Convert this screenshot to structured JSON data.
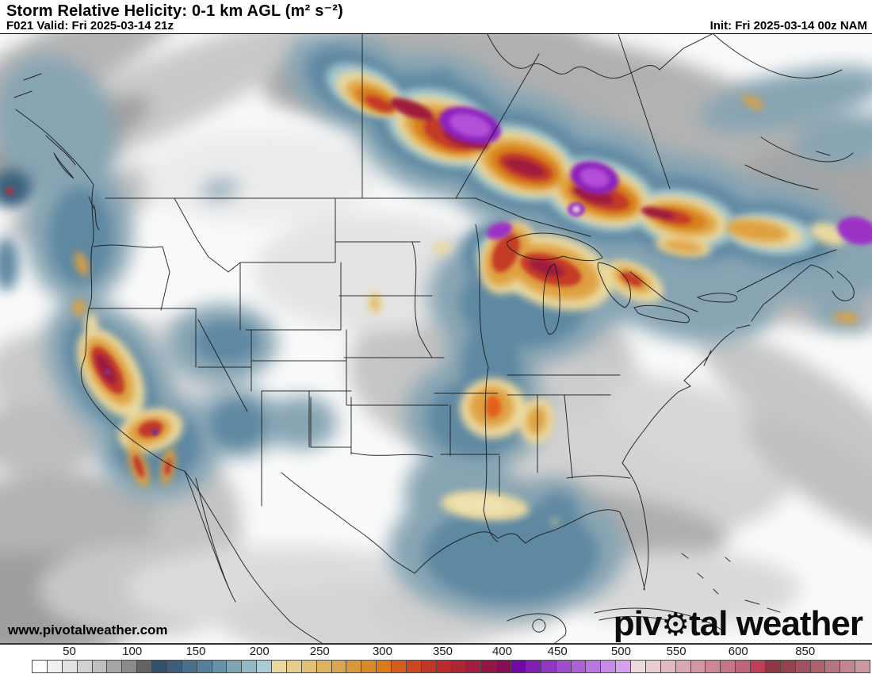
{
  "header": {
    "title": "Storm Relative Helicity: 0-1 km AGL (m² s⁻²)",
    "forecast_line": "F021 Valid: Fri 2025-03-14 21z",
    "init_line": "Init: Fri 2025-03-14 00z NAM"
  },
  "map": {
    "watermark": "www.pivotalweather.com",
    "logo": {
      "part1": "piv",
      "gear": "⚙",
      "part2": "tal weather"
    }
  },
  "colorbar": {
    "labels": [
      "50",
      "100",
      "150",
      "200",
      "250",
      "300",
      "350",
      "400",
      "450",
      "500",
      "550",
      "600",
      "850"
    ],
    "positions_pct": [
      4.5,
      12.0,
      19.6,
      27.2,
      34.4,
      41.9,
      49.1,
      56.2,
      62.8,
      70.4,
      77.0,
      84.4,
      92.4
    ],
    "cells": [
      "#ffffff",
      "#f0f0f0",
      "#e2e2e2",
      "#d2d2d2",
      "#bfbfbf",
      "#a6a6a6",
      "#8a8a8a",
      "#646464",
      "#31506b",
      "#3c5e7b",
      "#48708d",
      "#567f9a",
      "#6891a7",
      "#7ca4b3",
      "#92b9c2",
      "#aacdd3",
      "#ebd9a2",
      "#e7cd8c",
      "#e3c076",
      "#dfb362",
      "#dca64e",
      "#da983c",
      "#d88a2b",
      "#d77b1b",
      "#d25d1f",
      "#c94722",
      "#c13726",
      "#b82d2c",
      "#ad2635",
      "#a11e3e",
      "#941647",
      "#860e52",
      "#7008a8",
      "#8120b5",
      "#9237c3",
      "#a14bcd",
      "#ae60d6",
      "#bb76df",
      "#c88be7",
      "#d5a2ee",
      "#eedadd",
      "#e7ccd2",
      "#e1bac2",
      "#daa8b2",
      "#d397a3",
      "#cd8794",
      "#c67685",
      "#c06577",
      "#bc4059",
      "#8d3845",
      "#954350",
      "#a05260",
      "#ab636e",
      "#b6747e",
      "#c2868e",
      "#cd989f"
    ]
  }
}
